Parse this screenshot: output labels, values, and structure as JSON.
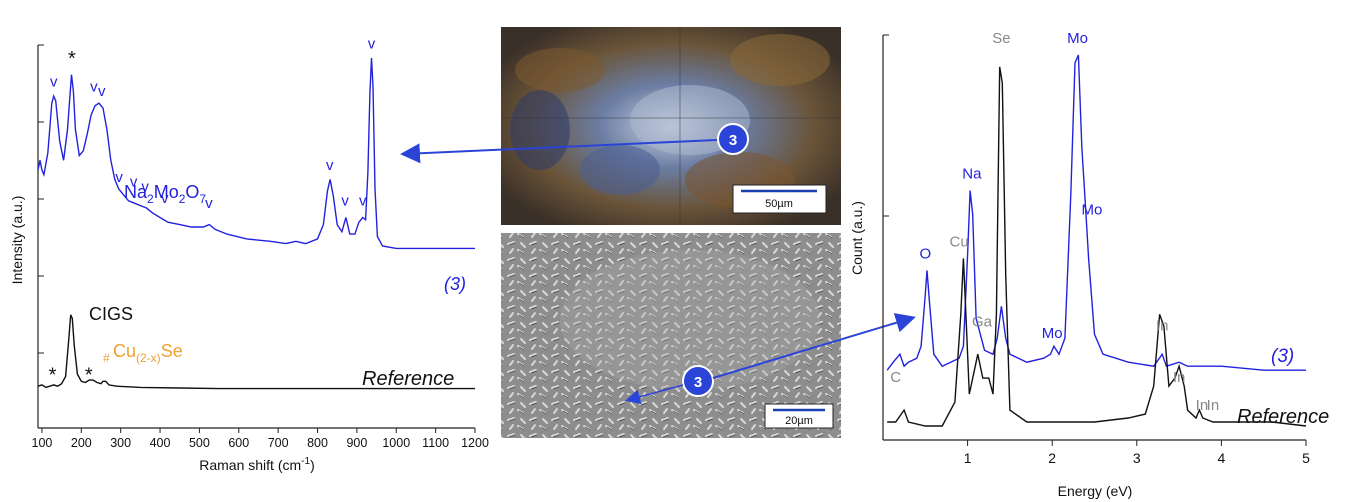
{
  "chart_data": [
    {
      "type": "line",
      "xlabel": "Raman shift (cm",
      "xlabel_sup": "-1",
      "xlabel_tail": ")",
      "ylabel": "Intensity (a.u.)",
      "xlim": [
        90,
        1200
      ],
      "xticks": [
        100,
        200,
        300,
        400,
        500,
        600,
        700,
        800,
        900,
        1000,
        1100,
        1200
      ],
      "ylim": [
        0,
        1
      ],
      "series": [
        {
          "name": "(3)",
          "color": "#2222dd",
          "points": [
            [
              90,
              0.53
            ],
            [
              95,
              0.57
            ],
            [
              100,
              0.53
            ],
            [
              105,
              0.51
            ],
            [
              115,
              0.6
            ],
            [
              125,
              0.81
            ],
            [
              130,
              0.84
            ],
            [
              135,
              0.82
            ],
            [
              145,
              0.65
            ],
            [
              155,
              0.57
            ],
            [
              165,
              0.7
            ],
            [
              175,
              0.93
            ],
            [
              180,
              0.86
            ],
            [
              185,
              0.7
            ],
            [
              195,
              0.59
            ],
            [
              205,
              0.61
            ],
            [
              215,
              0.68
            ],
            [
              225,
              0.76
            ],
            [
              235,
              0.8
            ],
            [
              245,
              0.81
            ],
            [
              255,
              0.79
            ],
            [
              265,
              0.7
            ],
            [
              275,
              0.57
            ],
            [
              285,
              0.49
            ],
            [
              295,
              0.45
            ],
            [
              305,
              0.43
            ],
            [
              320,
              0.4
            ],
            [
              335,
              0.39
            ],
            [
              350,
              0.38
            ],
            [
              365,
              0.37
            ],
            [
              380,
              0.35
            ],
            [
              400,
              0.33
            ],
            [
              420,
              0.31
            ],
            [
              450,
              0.3
            ],
            [
              480,
              0.29
            ],
            [
              510,
              0.29
            ],
            [
              525,
              0.3
            ],
            [
              540,
              0.28
            ],
            [
              570,
              0.26
            ],
            [
              620,
              0.24
            ],
            [
              680,
              0.23
            ],
            [
              720,
              0.22
            ],
            [
              745,
              0.23
            ],
            [
              770,
              0.22
            ],
            [
              800,
              0.24
            ],
            [
              815,
              0.3
            ],
            [
              825,
              0.44
            ],
            [
              832,
              0.49
            ],
            [
              840,
              0.42
            ],
            [
              850,
              0.3
            ],
            [
              862,
              0.27
            ],
            [
              872,
              0.33
            ],
            [
              882,
              0.26
            ],
            [
              895,
              0.26
            ],
            [
              905,
              0.31
            ],
            [
              915,
              0.33
            ],
            [
              922,
              0.32
            ],
            [
              928,
              0.52
            ],
            [
              933,
              0.85
            ],
            [
              937,
              1.0
            ],
            [
              941,
              0.88
            ],
            [
              946,
              0.45
            ],
            [
              952,
              0.25
            ],
            [
              965,
              0.21
            ],
            [
              1000,
              0.2
            ],
            [
              1050,
              0.2
            ],
            [
              1100,
              0.2
            ],
            [
              1150,
              0.2
            ],
            [
              1200,
              0.2
            ]
          ]
        },
        {
          "name": "Reference",
          "color": "#111111",
          "points": [
            [
              90,
              0.04
            ],
            [
              100,
              0.05
            ],
            [
              110,
              0.03
            ],
            [
              120,
              0.04
            ],
            [
              130,
              0.05
            ],
            [
              140,
              0.04
            ],
            [
              150,
              0.06
            ],
            [
              160,
              0.12
            ],
            [
              168,
              0.42
            ],
            [
              173,
              0.63
            ],
            [
              177,
              0.6
            ],
            [
              182,
              0.38
            ],
            [
              190,
              0.14
            ],
            [
              200,
              0.08
            ],
            [
              210,
              0.07
            ],
            [
              220,
              0.09
            ],
            [
              230,
              0.09
            ],
            [
              240,
              0.07
            ],
            [
              250,
              0.06
            ],
            [
              255,
              0.08
            ],
            [
              262,
              0.08
            ],
            [
              270,
              0.05
            ],
            [
              290,
              0.04
            ],
            [
              350,
              0.03
            ],
            [
              450,
              0.025
            ],
            [
              550,
              0.02
            ],
            [
              650,
              0.02
            ],
            [
              750,
              0.02
            ],
            [
              850,
              0.02
            ],
            [
              950,
              0.02
            ],
            [
              1050,
              0.02
            ],
            [
              1150,
              0.02
            ],
            [
              1200,
              0.02
            ]
          ]
        }
      ],
      "annotations": [
        {
          "text": "v",
          "x": 130,
          "y": 0.88,
          "color": "#2222dd"
        },
        {
          "text": "*",
          "x": 176,
          "y": 0.97,
          "color": "#111111"
        },
        {
          "text": "v",
          "x": 232,
          "y": 0.86,
          "color": "#2222dd"
        },
        {
          "text": "v",
          "x": 252,
          "y": 0.84,
          "color": "#2222dd"
        },
        {
          "text": "v",
          "x": 296,
          "y": 0.48,
          "color": "#2222dd"
        },
        {
          "text": "v",
          "x": 333,
          "y": 0.46,
          "color": "#2222dd"
        },
        {
          "text": "v",
          "x": 362,
          "y": 0.44,
          "color": "#2222dd"
        },
        {
          "text": "v",
          "x": 412,
          "y": 0.39,
          "color": "#2222dd"
        },
        {
          "text": "v",
          "x": 524,
          "y": 0.37,
          "color": "#2222dd"
        },
        {
          "text": "v",
          "x": 831,
          "y": 0.53,
          "color": "#2222dd"
        },
        {
          "text": "v",
          "x": 870,
          "y": 0.38,
          "color": "#2222dd"
        },
        {
          "text": "v",
          "x": 915,
          "y": 0.38,
          "color": "#2222dd"
        },
        {
          "text": "v",
          "x": 937,
          "y": 1.04,
          "color": "#2222dd"
        },
        {
          "text": "*",
          "x": 127,
          "y": 0.08,
          "color": "#111111"
        },
        {
          "text": "*",
          "x": 219,
          "y": 0.08,
          "color": "#111111"
        }
      ],
      "labels": {
        "phase_main": "Na",
        "phase_sub1": "2",
        "phase_mid": "Mo",
        "phase_sub2": "2",
        "phase_o": "O",
        "phase_sub3": "7",
        "series_tag": "(3)",
        "cigs": "CIGS",
        "hash": "#",
        "cu_main": "Cu",
        "cu_sub": "(2-x)",
        "cu_tail": "Se",
        "ref": "Reference"
      },
      "colors": {
        "blue": "#2222dd",
        "orange": "#f0a030",
        "black": "#111111"
      }
    },
    {
      "type": "line",
      "xlabel": "Energy (eV)",
      "ylabel": "Count (a.u.)",
      "xlim": [
        0,
        5
      ],
      "xticks": [
        1,
        2,
        3,
        4,
        5
      ],
      "ylim": [
        0,
        1
      ],
      "series": [
        {
          "name": "(3)",
          "color": "#2222dd",
          "points": [
            [
              0.05,
              0.16
            ],
            [
              0.12,
              0.18
            ],
            [
              0.2,
              0.2
            ],
            [
              0.25,
              0.17
            ],
            [
              0.3,
              0.18
            ],
            [
              0.4,
              0.19
            ],
            [
              0.45,
              0.22
            ],
            [
              0.5,
              0.35
            ],
            [
              0.52,
              0.41
            ],
            [
              0.55,
              0.33
            ],
            [
              0.6,
              0.2
            ],
            [
              0.7,
              0.17
            ],
            [
              0.8,
              0.18
            ],
            [
              0.9,
              0.19
            ],
            [
              0.95,
              0.22
            ],
            [
              1.0,
              0.45
            ],
            [
              1.03,
              0.61
            ],
            [
              1.06,
              0.55
            ],
            [
              1.1,
              0.29
            ],
            [
              1.2,
              0.21
            ],
            [
              1.3,
              0.2
            ],
            [
              1.35,
              0.24
            ],
            [
              1.4,
              0.32
            ],
            [
              1.45,
              0.24
            ],
            [
              1.5,
              0.2
            ],
            [
              1.7,
              0.18
            ],
            [
              1.9,
              0.19
            ],
            [
              1.98,
              0.2
            ],
            [
              2.02,
              0.22
            ],
            [
              2.08,
              0.2
            ],
            [
              2.15,
              0.24
            ],
            [
              2.22,
              0.6
            ],
            [
              2.27,
              0.93
            ],
            [
              2.31,
              0.95
            ],
            [
              2.35,
              0.72
            ],
            [
              2.4,
              0.55
            ],
            [
              2.43,
              0.44
            ],
            [
              2.5,
              0.25
            ],
            [
              2.6,
              0.2
            ],
            [
              2.9,
              0.18
            ],
            [
              3.2,
              0.17
            ],
            [
              3.3,
              0.2
            ],
            [
              3.35,
              0.17
            ],
            [
              3.5,
              0.18
            ],
            [
              3.6,
              0.17
            ],
            [
              4.0,
              0.17
            ],
            [
              4.5,
              0.16
            ],
            [
              5,
              0.16
            ]
          ]
        },
        {
          "name": "Reference",
          "color": "#111111",
          "points": [
            [
              0.05,
              0.03
            ],
            [
              0.15,
              0.03
            ],
            [
              0.25,
              0.06
            ],
            [
              0.3,
              0.03
            ],
            [
              0.5,
              0.02
            ],
            [
              0.7,
              0.02
            ],
            [
              0.85,
              0.08
            ],
            [
              0.92,
              0.3
            ],
            [
              0.95,
              0.44
            ],
            [
              0.98,
              0.3
            ],
            [
              1.02,
              0.1
            ],
            [
              1.08,
              0.16
            ],
            [
              1.12,
              0.2
            ],
            [
              1.18,
              0.14
            ],
            [
              1.25,
              0.14
            ],
            [
              1.3,
              0.1
            ],
            [
              1.34,
              0.3
            ],
            [
              1.38,
              0.92
            ],
            [
              1.41,
              0.88
            ],
            [
              1.45,
              0.4
            ],
            [
              1.5,
              0.06
            ],
            [
              1.7,
              0.03
            ],
            [
              2.0,
              0.03
            ],
            [
              2.5,
              0.03
            ],
            [
              2.9,
              0.04
            ],
            [
              3.1,
              0.05
            ],
            [
              3.2,
              0.12
            ],
            [
              3.27,
              0.3
            ],
            [
              3.32,
              0.27
            ],
            [
              3.38,
              0.12
            ],
            [
              3.45,
              0.14
            ],
            [
              3.5,
              0.17
            ],
            [
              3.56,
              0.12
            ],
            [
              3.6,
              0.06
            ],
            [
              3.7,
              0.04
            ],
            [
              3.74,
              0.06
            ],
            [
              3.78,
              0.04
            ],
            [
              3.9,
              0.03
            ],
            [
              4.2,
              0.03
            ],
            [
              4.6,
              0.03
            ],
            [
              5,
              0.02
            ]
          ]
        }
      ],
      "annotations": [
        {
          "text": "Se",
          "x": 1.4,
          "y": 0.98,
          "color": "#888888"
        },
        {
          "text": "Mo",
          "x": 2.3,
          "y": 0.98,
          "color": "#2222dd"
        },
        {
          "text": "Na",
          "x": 1.05,
          "y": 0.64,
          "color": "#2222dd"
        },
        {
          "text": "Mo",
          "x": 2.47,
          "y": 0.55,
          "color": "#2222dd"
        },
        {
          "text": "Cu",
          "x": 0.9,
          "y": 0.47,
          "color": "#888888"
        },
        {
          "text": "O",
          "x": 0.5,
          "y": 0.44,
          "color": "#2222dd"
        },
        {
          "text": "Ga",
          "x": 1.17,
          "y": 0.27,
          "color": "#888888"
        },
        {
          "text": "Mo",
          "x": 2.0,
          "y": 0.24,
          "color": "#2222dd"
        },
        {
          "text": "C",
          "x": 0.15,
          "y": 0.13,
          "color": "#888888"
        },
        {
          "text": "In",
          "x": 3.3,
          "y": 0.26,
          "color": "#888888"
        },
        {
          "text": "In",
          "x": 3.5,
          "y": 0.13,
          "color": "#888888"
        },
        {
          "text": "In",
          "x": 3.77,
          "y": 0.06,
          "color": "#888888"
        },
        {
          "text": "In",
          "x": 3.9,
          "y": 0.06,
          "color": "#888888"
        }
      ],
      "labels": {
        "series_tag": "(3)",
        "ref": "Reference"
      }
    }
  ],
  "images": {
    "optical": {
      "scale_label": "50µm",
      "marker": "3"
    },
    "sem": {
      "scale_label": "20µm",
      "marker": "3"
    }
  }
}
